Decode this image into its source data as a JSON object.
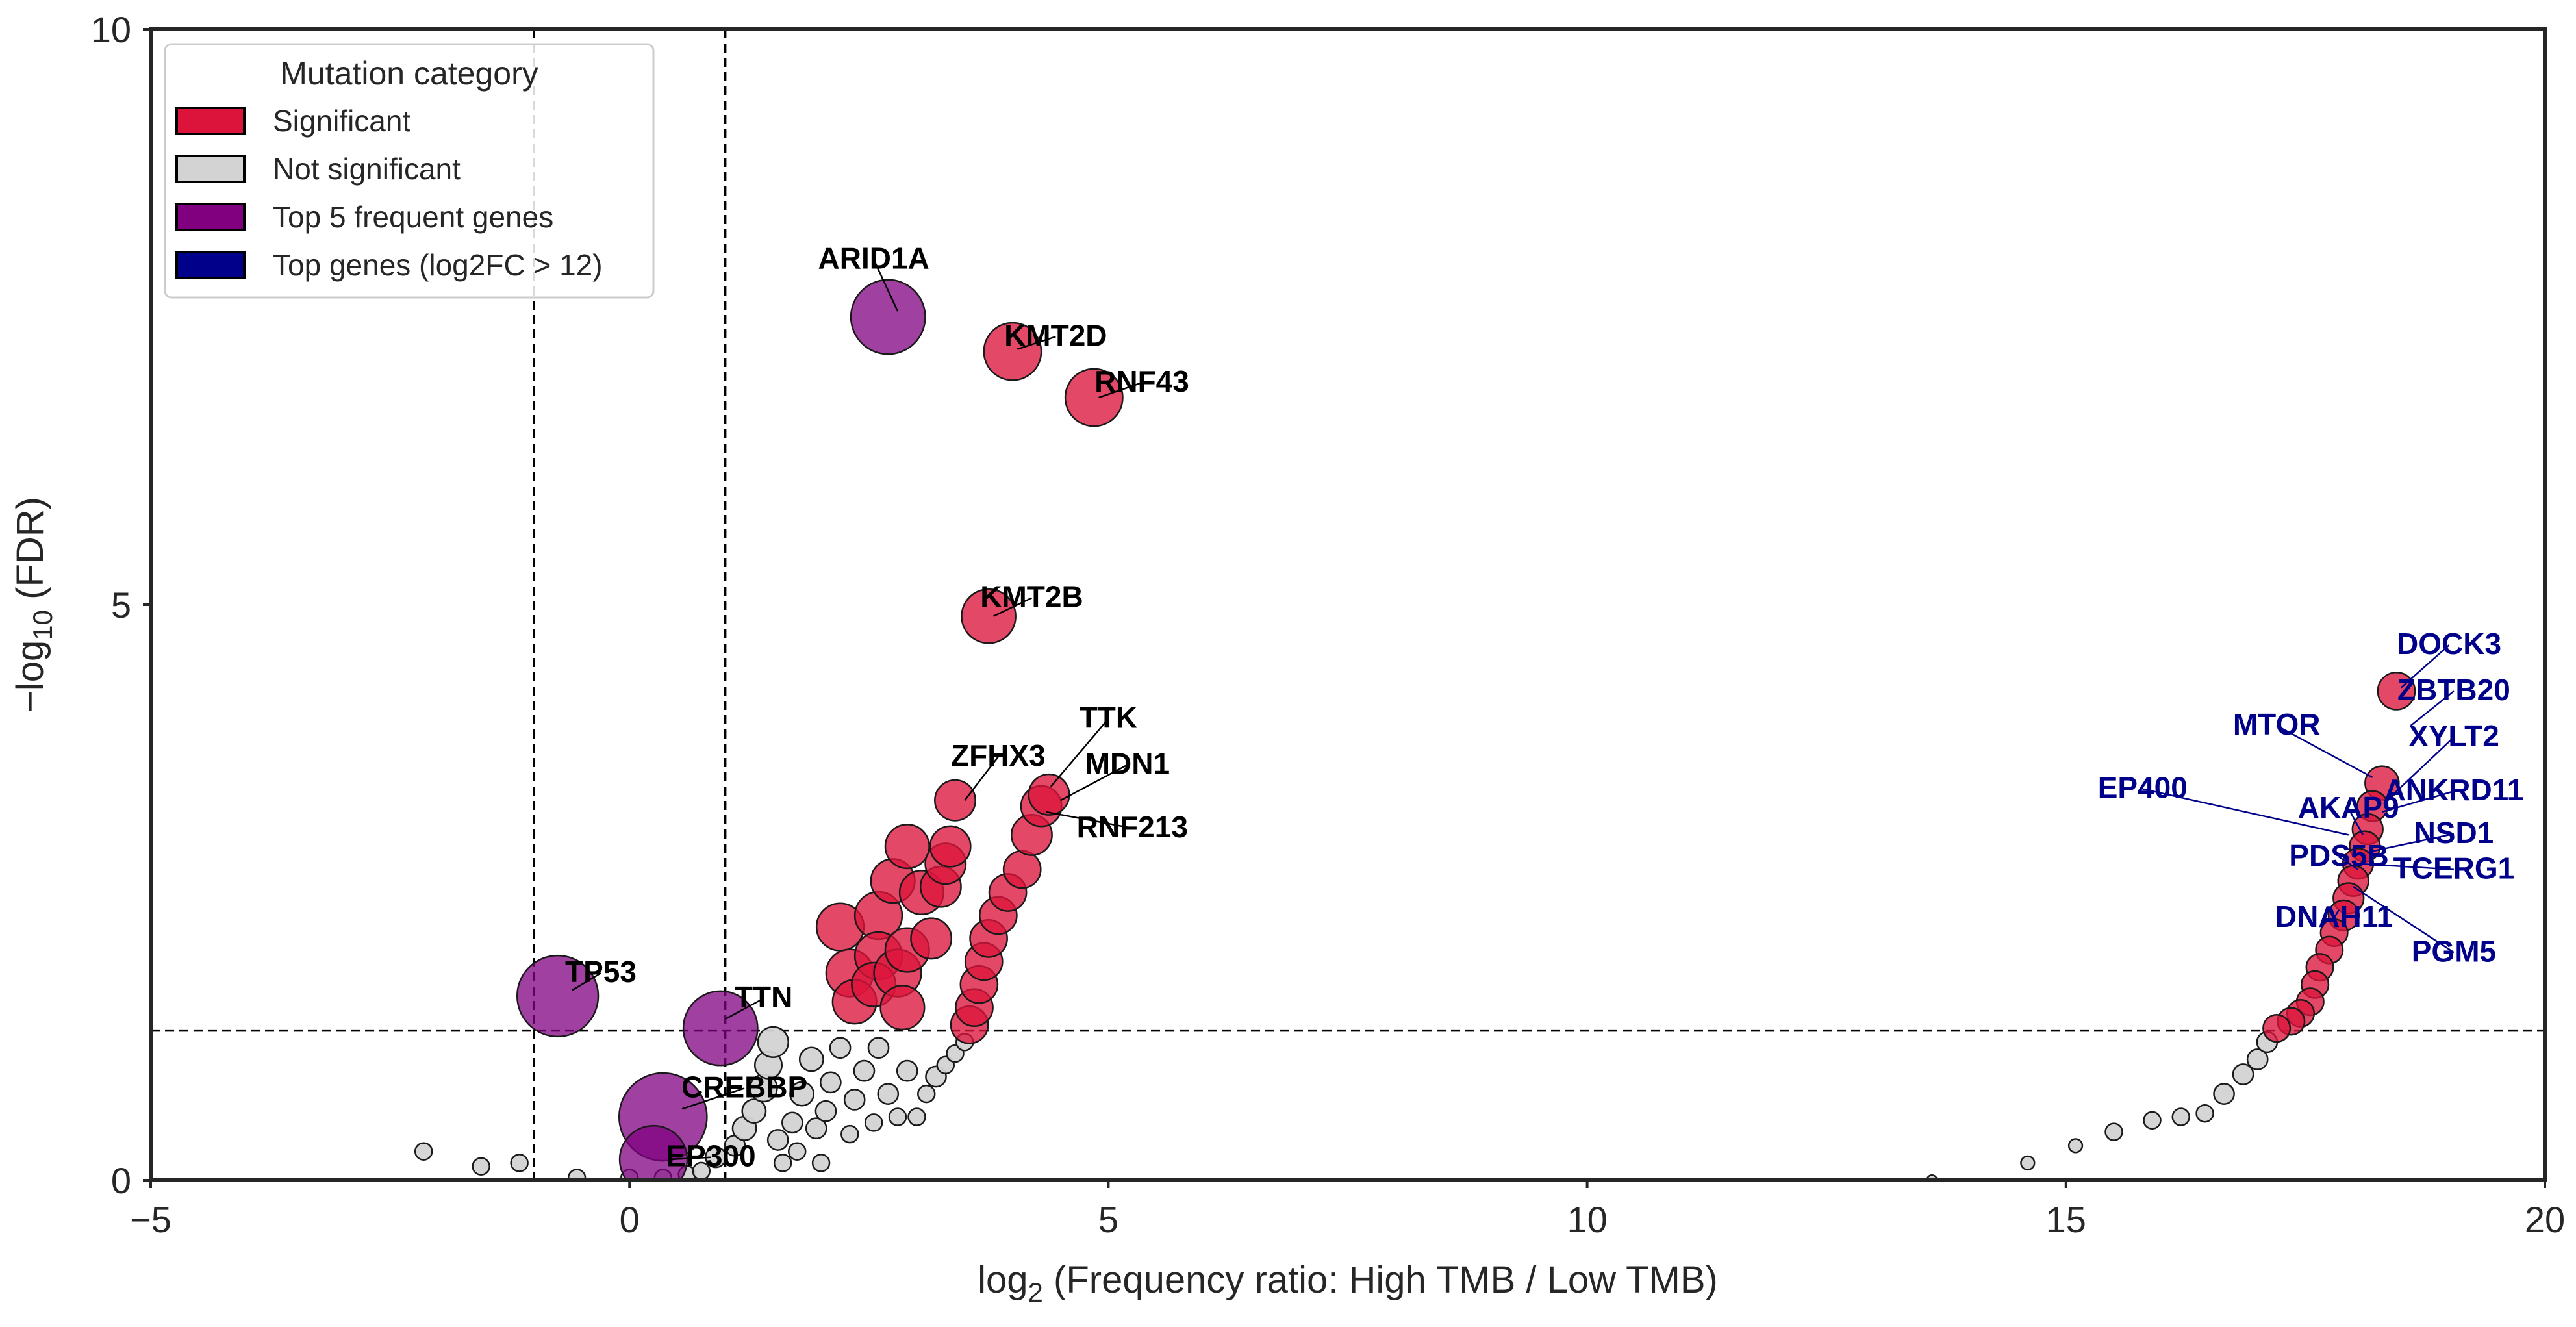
{
  "colors": {
    "significant": "#DC143C",
    "not_significant": "#D3D3D3",
    "top5": "#800080",
    "top_fc": "#00008B",
    "label_fc": "#00008B"
  },
  "chart_data": {
    "type": "scatter",
    "xlabel": "log2 (Frequency ratio: High TMB / Low TMB)",
    "xlabel_prefix": "log",
    "xlabel_sub": "2",
    "xlabel_suffix": " (Frequency ratio: High TMB / Low TMB)",
    "ylabel": "−log10 (FDR)",
    "ylabel_prefix": "−log",
    "ylabel_sub": "10",
    "ylabel_suffix": " (FDR)",
    "xlim": [
      -5,
      20
    ],
    "ylim": [
      0,
      10
    ],
    "xticks": [
      -5,
      0,
      5,
      10,
      15,
      20
    ],
    "xtick_labels": [
      "−5",
      "0",
      "5",
      "10",
      "15",
      "20"
    ],
    "yticks": [
      0,
      5,
      10
    ],
    "ytick_labels": [
      "0",
      "5",
      "10"
    ],
    "threshold_lines": {
      "vertical": [
        -1,
        1
      ],
      "horizontal": [
        1.3
      ]
    },
    "legend": {
      "title": "Mutation category",
      "position": "top-left",
      "entries": [
        {
          "label": "Significant",
          "category": "significant"
        },
        {
          "label": "Not significant",
          "category": "not_significant"
        },
        {
          "label": "Top 5 frequent genes",
          "category": "top5"
        },
        {
          "label": "Top genes (log2FC > 12)",
          "category": "top_fc"
        }
      ]
    },
    "series": [
      {
        "name": "Top 5 frequent genes",
        "category": "top5",
        "points": [
          {
            "x": 2.7,
            "y": 7.5,
            "r": 22
          },
          {
            "x": -0.75,
            "y": 1.6,
            "r": 24
          },
          {
            "x": 0.95,
            "y": 1.32,
            "r": 22
          },
          {
            "x": 0.35,
            "y": 0.55,
            "r": 26
          },
          {
            "x": 0.25,
            "y": 0.18,
            "r": 20
          }
        ]
      },
      {
        "name": "Significant",
        "category": "significant",
        "points": [
          {
            "x": 4.0,
            "y": 7.2,
            "r": 17
          },
          {
            "x": 4.85,
            "y": 6.8,
            "r": 17
          },
          {
            "x": 3.75,
            "y": 4.9,
            "r": 16
          },
          {
            "x": 2.2,
            "y": 2.2,
            "r": 14
          },
          {
            "x": 2.3,
            "y": 1.8,
            "r": 14
          },
          {
            "x": 2.35,
            "y": 1.55,
            "r": 13
          },
          {
            "x": 2.6,
            "y": 2.3,
            "r": 14
          },
          {
            "x": 2.6,
            "y": 1.95,
            "r": 14
          },
          {
            "x": 2.55,
            "y": 1.7,
            "r": 13
          },
          {
            "x": 2.8,
            "y": 1.8,
            "r": 14
          },
          {
            "x": 2.85,
            "y": 1.5,
            "r": 13
          },
          {
            "x": 2.9,
            "y": 2.0,
            "r": 13
          },
          {
            "x": 2.75,
            "y": 2.6,
            "r": 13
          },
          {
            "x": 2.9,
            "y": 2.9,
            "r": 13
          },
          {
            "x": 3.05,
            "y": 2.5,
            "r": 13
          },
          {
            "x": 3.15,
            "y": 2.1,
            "r": 12
          },
          {
            "x": 3.25,
            "y": 2.55,
            "r": 12
          },
          {
            "x": 3.3,
            "y": 2.75,
            "r": 12
          },
          {
            "x": 3.35,
            "y": 2.9,
            "r": 12
          },
          {
            "x": 3.4,
            "y": 3.3,
            "r": 12
          },
          {
            "x": 3.55,
            "y": 1.35,
            "r": 11
          },
          {
            "x": 3.6,
            "y": 1.5,
            "r": 11
          },
          {
            "x": 3.65,
            "y": 1.7,
            "r": 11
          },
          {
            "x": 3.7,
            "y": 1.9,
            "r": 11
          },
          {
            "x": 3.75,
            "y": 2.1,
            "r": 11
          },
          {
            "x": 3.85,
            "y": 2.3,
            "r": 11
          },
          {
            "x": 3.95,
            "y": 2.5,
            "r": 11
          },
          {
            "x": 4.1,
            "y": 2.7,
            "r": 11
          },
          {
            "x": 4.2,
            "y": 3.0,
            "r": 12
          },
          {
            "x": 4.3,
            "y": 3.25,
            "r": 12
          },
          {
            "x": 4.38,
            "y": 3.35,
            "r": 12
          },
          {
            "x": 18.45,
            "y": 4.25,
            "r": 11
          },
          {
            "x": 18.3,
            "y": 3.45,
            "r": 10
          },
          {
            "x": 18.2,
            "y": 3.25,
            "r": 9
          },
          {
            "x": 18.15,
            "y": 3.05,
            "r": 9
          },
          {
            "x": 18.12,
            "y": 2.9,
            "r": 9
          },
          {
            "x": 18.05,
            "y": 2.75,
            "r": 9
          },
          {
            "x": 18.0,
            "y": 2.6,
            "r": 9
          },
          {
            "x": 17.95,
            "y": 2.45,
            "r": 9
          },
          {
            "x": 17.9,
            "y": 2.3,
            "r": 9
          },
          {
            "x": 17.8,
            "y": 2.15,
            "r": 8
          },
          {
            "x": 17.75,
            "y": 2.0,
            "r": 8
          },
          {
            "x": 17.65,
            "y": 1.85,
            "r": 8
          },
          {
            "x": 17.6,
            "y": 1.7,
            "r": 8
          },
          {
            "x": 17.55,
            "y": 1.55,
            "r": 8
          },
          {
            "x": 17.45,
            "y": 1.45,
            "r": 8
          },
          {
            "x": 17.35,
            "y": 1.38,
            "r": 8
          },
          {
            "x": 17.2,
            "y": 1.32,
            "r": 8
          }
        ]
      },
      {
        "name": "Not significant",
        "category": "not_significant",
        "points": [
          {
            "x": -2.15,
            "y": 0.25,
            "r": 5
          },
          {
            "x": -1.55,
            "y": 0.12,
            "r": 5
          },
          {
            "x": -1.15,
            "y": 0.15,
            "r": 5
          },
          {
            "x": -0.55,
            "y": 0.02,
            "r": 5
          },
          {
            "x": 0.0,
            "y": 0.02,
            "r": 5
          },
          {
            "x": 0.35,
            "y": 0.02,
            "r": 5
          },
          {
            "x": 0.6,
            "y": 0.05,
            "r": 5
          },
          {
            "x": 0.75,
            "y": 0.08,
            "r": 5
          },
          {
            "x": 0.9,
            "y": 0.2,
            "r": 6
          },
          {
            "x": 1.1,
            "y": 0.3,
            "r": 6
          },
          {
            "x": 1.2,
            "y": 0.45,
            "r": 7
          },
          {
            "x": 1.3,
            "y": 0.6,
            "r": 7
          },
          {
            "x": 1.4,
            "y": 0.8,
            "r": 8
          },
          {
            "x": 1.45,
            "y": 1.0,
            "r": 8
          },
          {
            "x": 1.5,
            "y": 1.2,
            "r": 9
          },
          {
            "x": 1.55,
            "y": 0.35,
            "r": 6
          },
          {
            "x": 1.6,
            "y": 0.15,
            "r": 5
          },
          {
            "x": 1.7,
            "y": 0.5,
            "r": 6
          },
          {
            "x": 1.75,
            "y": 0.25,
            "r": 5
          },
          {
            "x": 1.8,
            "y": 0.75,
            "r": 7
          },
          {
            "x": 1.9,
            "y": 1.05,
            "r": 7
          },
          {
            "x": 1.95,
            "y": 0.45,
            "r": 6
          },
          {
            "x": 2.0,
            "y": 0.15,
            "r": 5
          },
          {
            "x": 2.05,
            "y": 0.6,
            "r": 6
          },
          {
            "x": 2.1,
            "y": 0.85,
            "r": 6
          },
          {
            "x": 2.2,
            "y": 1.15,
            "r": 6
          },
          {
            "x": 2.3,
            "y": 0.4,
            "r": 5
          },
          {
            "x": 2.35,
            "y": 0.7,
            "r": 6
          },
          {
            "x": 2.45,
            "y": 0.95,
            "r": 6
          },
          {
            "x": 2.55,
            "y": 0.5,
            "r": 5
          },
          {
            "x": 2.6,
            "y": 1.15,
            "r": 6
          },
          {
            "x": 2.7,
            "y": 0.75,
            "r": 6
          },
          {
            "x": 2.8,
            "y": 0.55,
            "r": 5
          },
          {
            "x": 2.9,
            "y": 0.95,
            "r": 6
          },
          {
            "x": 3.0,
            "y": 0.55,
            "r": 5
          },
          {
            "x": 3.1,
            "y": 0.75,
            "r": 5
          },
          {
            "x": 3.2,
            "y": 0.9,
            "r": 6
          },
          {
            "x": 3.3,
            "y": 1.0,
            "r": 5
          },
          {
            "x": 3.4,
            "y": 1.1,
            "r": 5
          },
          {
            "x": 3.5,
            "y": 1.2,
            "r": 5
          },
          {
            "x": 13.6,
            "y": 0.0,
            "r": 3
          },
          {
            "x": 14.6,
            "y": 0.15,
            "r": 4
          },
          {
            "x": 15.1,
            "y": 0.3,
            "r": 4
          },
          {
            "x": 15.5,
            "y": 0.42,
            "r": 5
          },
          {
            "x": 15.9,
            "y": 0.52,
            "r": 5
          },
          {
            "x": 16.2,
            "y": 0.55,
            "r": 5
          },
          {
            "x": 16.45,
            "y": 0.58,
            "r": 5
          },
          {
            "x": 16.65,
            "y": 0.75,
            "r": 6
          },
          {
            "x": 16.85,
            "y": 0.92,
            "r": 6
          },
          {
            "x": 17.0,
            "y": 1.05,
            "r": 6
          },
          {
            "x": 17.1,
            "y": 1.2,
            "r": 6
          }
        ]
      }
    ],
    "annotations": [
      {
        "label": "ARID1A",
        "tx": 2.55,
        "ty": 7.92,
        "px": 2.8,
        "py": 7.55,
        "color": "black"
      },
      {
        "label": "KMT2D",
        "tx": 4.45,
        "ty": 7.25,
        "px": 4.05,
        "py": 7.22,
        "color": "black"
      },
      {
        "label": "RNF43",
        "tx": 5.35,
        "ty": 6.85,
        "px": 4.9,
        "py": 6.8,
        "color": "black"
      },
      {
        "label": "KMT2B",
        "tx": 4.2,
        "ty": 4.98,
        "px": 3.8,
        "py": 4.9,
        "color": "black"
      },
      {
        "label": "TTK",
        "tx": 5.0,
        "ty": 3.93,
        "px": 4.4,
        "py": 3.42,
        "color": "black"
      },
      {
        "label": "ZFHX3",
        "tx": 3.85,
        "ty": 3.6,
        "px": 3.5,
        "py": 3.3,
        "color": "black"
      },
      {
        "label": "MDN1",
        "tx": 5.2,
        "ty": 3.53,
        "px": 4.5,
        "py": 3.3,
        "color": "black"
      },
      {
        "label": "RNF213",
        "tx": 5.25,
        "ty": 2.98,
        "px": 4.35,
        "py": 3.2,
        "color": "black"
      },
      {
        "label": "TP53",
        "tx": -0.3,
        "ty": 1.72,
        "px": -0.6,
        "py": 1.65,
        "color": "black"
      },
      {
        "label": "TTN",
        "tx": 1.4,
        "ty": 1.5,
        "px": 1.0,
        "py": 1.4,
        "color": "black"
      },
      {
        "label": "CREBBP",
        "tx": 1.2,
        "ty": 0.72,
        "px": 0.55,
        "py": 0.62,
        "color": "black"
      },
      {
        "label": "EP300",
        "tx": 0.85,
        "ty": 0.12,
        "px": 0.4,
        "py": 0.18,
        "color": "black"
      },
      {
        "label": "DOCK3",
        "tx": 19.0,
        "ty": 4.57,
        "px": 18.5,
        "py": 4.28,
        "color": "fc"
      },
      {
        "label": "ZBTB20",
        "tx": 19.05,
        "ty": 4.17,
        "px": 18.6,
        "py": 3.95,
        "color": "fc"
      },
      {
        "label": "MTOR",
        "tx": 17.2,
        "ty": 3.87,
        "px": 18.2,
        "py": 3.5,
        "color": "fc"
      },
      {
        "label": "XYLT2",
        "tx": 19.05,
        "ty": 3.77,
        "px": 18.35,
        "py": 3.3,
        "color": "fc"
      },
      {
        "label": "ANKRD11",
        "tx": 19.05,
        "ty": 3.3,
        "px": 18.3,
        "py": 3.2,
        "color": "fc"
      },
      {
        "label": "EP400",
        "tx": 15.8,
        "ty": 3.32,
        "px": 17.95,
        "py": 3.0,
        "color": "fc"
      },
      {
        "label": "AKAP9",
        "tx": 17.95,
        "ty": 3.15,
        "px": 18.1,
        "py": 3.0,
        "color": "fc"
      },
      {
        "label": "NSD1",
        "tx": 19.05,
        "ty": 2.93,
        "px": 18.15,
        "py": 2.85,
        "color": "fc"
      },
      {
        "label": "PDS5B",
        "tx": 17.85,
        "ty": 2.73,
        "px": 18.05,
        "py": 2.7,
        "color": "fc"
      },
      {
        "label": "TCERG1",
        "tx": 19.05,
        "ty": 2.62,
        "px": 18.05,
        "py": 2.75,
        "color": "fc"
      },
      {
        "label": "DNAH11",
        "tx": 17.8,
        "ty": 2.2,
        "px": 17.85,
        "py": 2.35,
        "color": "fc"
      },
      {
        "label": "PGM5",
        "tx": 19.05,
        "ty": 1.9,
        "px": 18.0,
        "py": 2.55,
        "color": "fc"
      }
    ]
  }
}
